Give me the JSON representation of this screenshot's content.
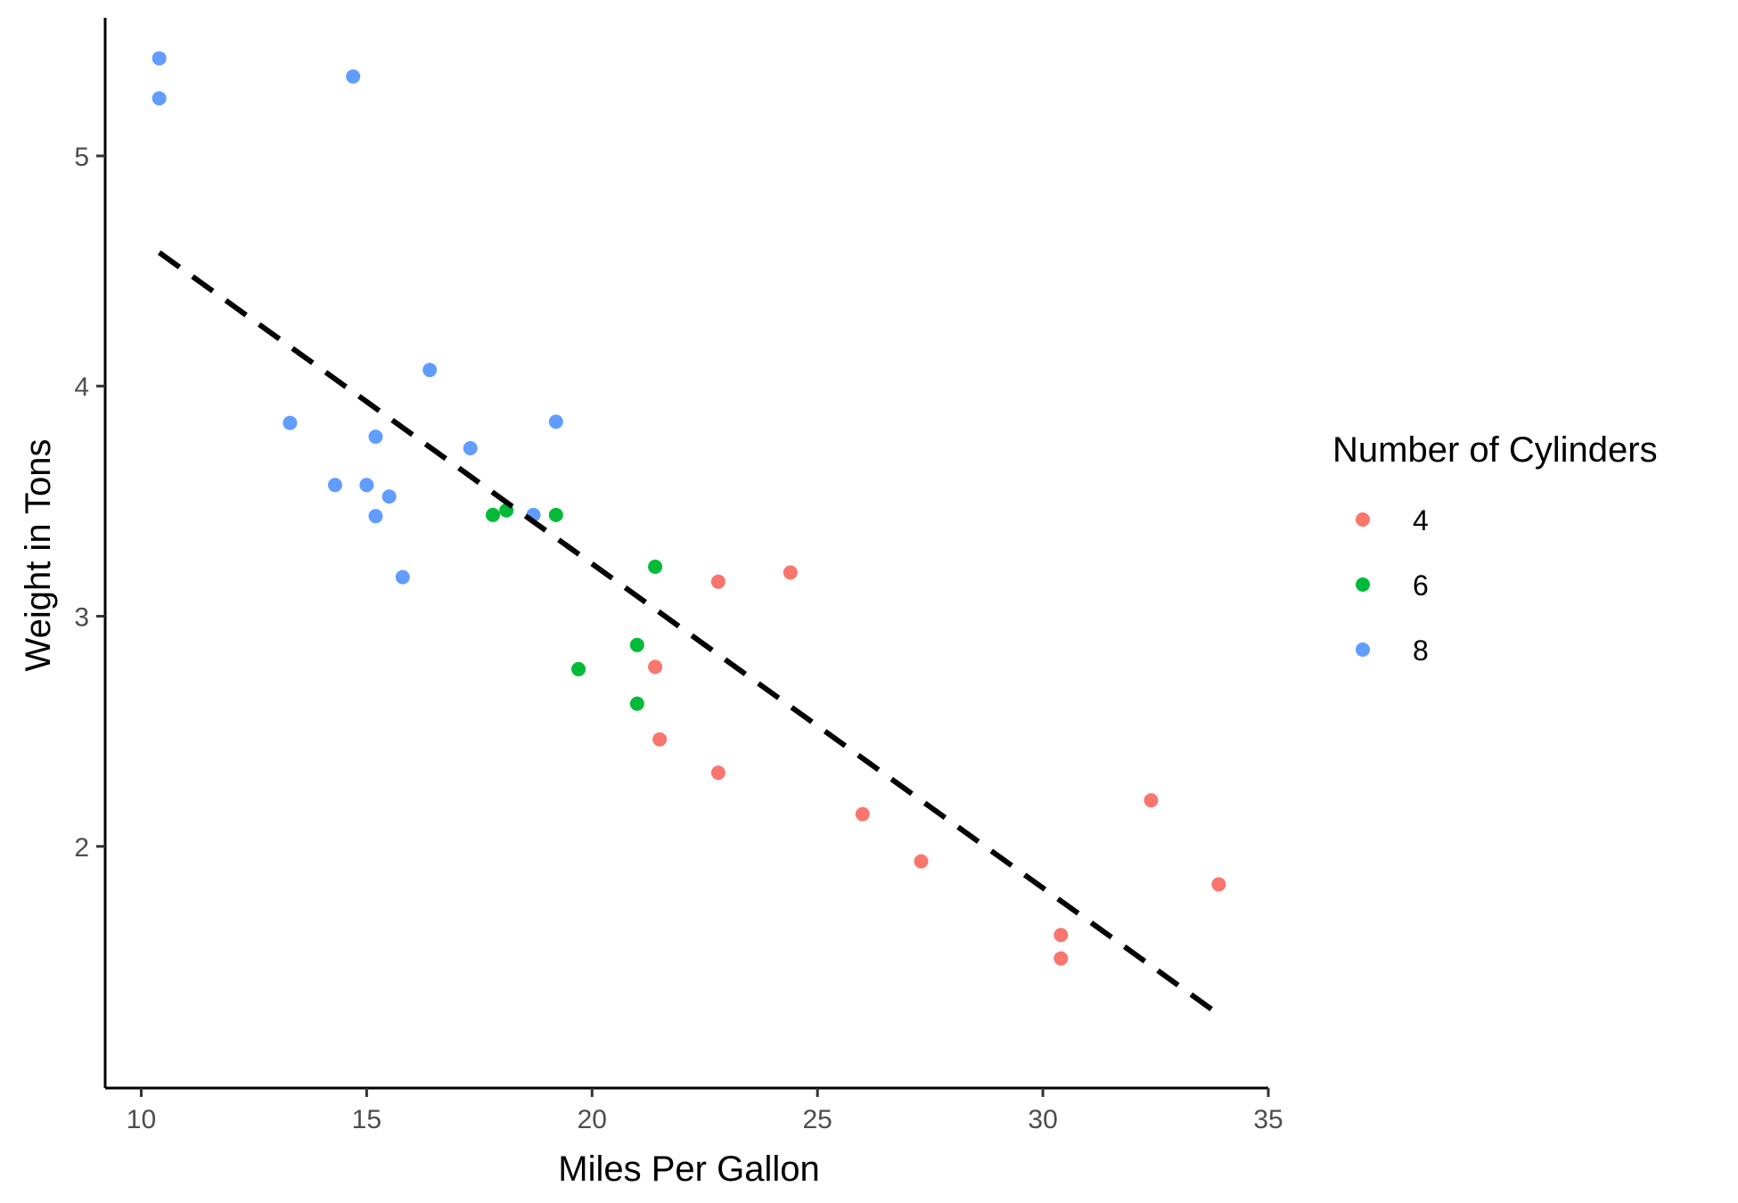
{
  "chart_data": {
    "type": "scatter",
    "xlabel": "Miles Per Gallon",
    "ylabel": "Weight in Tons",
    "xlim": [
      9.2,
      35.0
    ],
    "ylim": [
      0.95,
      5.6
    ],
    "xticks": [
      10,
      15,
      20,
      25,
      30,
      35
    ],
    "yticks": [
      2,
      3,
      4,
      5
    ],
    "grid": false,
    "legend": {
      "title": "Number of Cylinders",
      "position": "right"
    },
    "series": [
      {
        "name": "4",
        "color": "#F8766D",
        "points": [
          [
            22.8,
            2.32
          ],
          [
            24.4,
            3.19
          ],
          [
            22.8,
            3.15
          ],
          [
            32.4,
            2.2
          ],
          [
            30.4,
            1.615
          ],
          [
            33.9,
            1.835
          ],
          [
            21.5,
            2.465
          ],
          [
            27.3,
            1.935
          ],
          [
            26.0,
            2.14
          ],
          [
            30.4,
            1.513
          ],
          [
            21.4,
            2.78
          ]
        ]
      },
      {
        "name": "6",
        "color": "#00BA38",
        "points": [
          [
            21.0,
            2.62
          ],
          [
            21.0,
            2.875
          ],
          [
            21.4,
            3.215
          ],
          [
            18.1,
            3.46
          ],
          [
            19.2,
            3.44
          ],
          [
            17.8,
            3.44
          ],
          [
            19.7,
            2.77
          ]
        ]
      },
      {
        "name": "8",
        "color": "#619CFF",
        "points": [
          [
            18.7,
            3.44
          ],
          [
            14.3,
            3.57
          ],
          [
            16.4,
            4.07
          ],
          [
            17.3,
            3.73
          ],
          [
            15.2,
            3.78
          ],
          [
            10.4,
            5.25
          ],
          [
            10.4,
            5.424
          ],
          [
            14.7,
            5.345
          ],
          [
            15.5,
            3.52
          ],
          [
            15.2,
            3.435
          ],
          [
            13.3,
            3.84
          ],
          [
            19.2,
            3.845
          ],
          [
            15.8,
            3.17
          ],
          [
            15.0,
            3.57
          ]
        ]
      }
    ],
    "trend_line": {
      "style": "dashed",
      "color": "#000000",
      "x": [
        10.4,
        33.9
      ],
      "y": [
        4.58,
        1.27
      ]
    }
  }
}
